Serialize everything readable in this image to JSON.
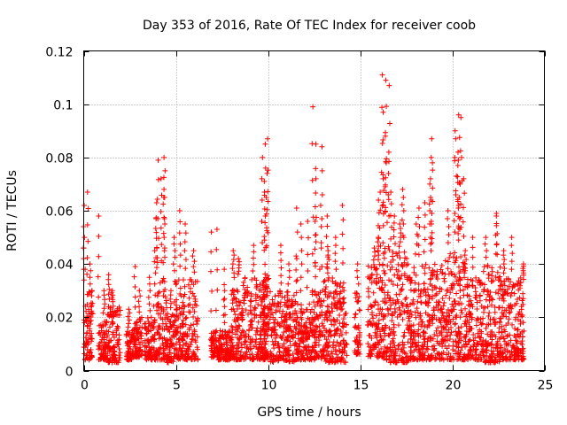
{
  "chart_data": {
    "type": "scatter",
    "title": "Day 353 of 2016, Rate Of TEC Index for receiver coob",
    "xlabel": "GPS time / hours",
    "ylabel": "ROTI / TECUs",
    "xlim": [
      0,
      25
    ],
    "ylim": [
      0,
      0.12
    ],
    "xticks": [
      0,
      5,
      10,
      15,
      20,
      25
    ],
    "xtick_labels": [
      "0",
      "5",
      "10",
      "15",
      "20",
      "25"
    ],
    "yticks": [
      0,
      0.02,
      0.04,
      0.06,
      0.08,
      0.1,
      0.12
    ],
    "ytick_labels": [
      "0",
      "0.02",
      "0.04",
      "0.06",
      "0.08",
      "0.1",
      "0.12"
    ],
    "grid": true,
    "marker": "+",
    "series": [
      {
        "name": "ROTI",
        "color": "#ff0000",
        "clusters": [
          {
            "x": [
              0.0,
              0.5
            ],
            "base": [
              0.004,
              0.03
            ],
            "peaks": [
              0.062,
              0.067,
              0.05,
              0.04
            ]
          },
          {
            "x": [
              0.8,
              1.3
            ],
            "base": [
              0.004,
              0.02
            ],
            "peaks": [
              0.058,
              0.03
            ]
          },
          {
            "x": [
              1.3,
              2.0
            ],
            "base": [
              0.003,
              0.025
            ],
            "peaks": [
              0.036,
              0.03
            ]
          },
          {
            "x": [
              2.3,
              2.6
            ],
            "base": [
              0.004,
              0.015
            ],
            "peaks": [
              0.023
            ]
          },
          {
            "x": [
              2.6,
              3.2
            ],
            "base": [
              0.005,
              0.02
            ],
            "peaks": [
              0.039,
              0.03
            ]
          },
          {
            "x": [
              3.3,
              3.9
            ],
            "base": [
              0.004,
              0.02
            ],
            "peaks": [
              0.045,
              0.035
            ]
          },
          {
            "x": [
              3.9,
              4.5
            ],
            "base": [
              0.004,
              0.035
            ],
            "peaks": [
              0.08,
              0.079,
              0.075,
              0.072,
              0.068,
              0.063,
              0.057
            ]
          },
          {
            "x": [
              4.5,
              4.9
            ],
            "base": [
              0.003,
              0.022
            ],
            "peaks": [
              0.03
            ]
          },
          {
            "x": [
              4.9,
              6.2
            ],
            "base": [
              0.004,
              0.035
            ],
            "peaks": [
              0.06,
              0.055,
              0.05,
              0.045
            ]
          },
          {
            "x": [
              6.9,
              7.3
            ],
            "base": [
              0.005,
              0.015
            ],
            "peaks": [
              0.053,
              0.052
            ]
          },
          {
            "x": [
              7.3,
              8.0
            ],
            "base": [
              0.004,
              0.015
            ],
            "peaks": [
              0.038,
              0.03
            ]
          },
          {
            "x": [
              8.0,
              10.0
            ],
            "base": [
              0.004,
              0.035
            ],
            "peaks": [
              0.047,
              0.045,
              0.042
            ]
          },
          {
            "x": [
              9.7,
              10.1
            ],
            "base": [
              0.004,
              0.04
            ],
            "peaks": [
              0.087,
              0.085,
              0.08,
              0.074,
              0.071,
              0.065
            ]
          },
          {
            "x": [
              10.1,
              11.5
            ],
            "base": [
              0.003,
              0.03
            ],
            "peaks": [
              0.047,
              0.04
            ]
          },
          {
            "x": [
              11.5,
              12.3
            ],
            "base": [
              0.004,
              0.025
            ],
            "peaks": [
              0.061,
              0.055,
              0.056,
              0.042
            ]
          },
          {
            "x": [
              12.3,
              13.0
            ],
            "base": [
              0.004,
              0.03
            ],
            "peaks": [
              0.099,
              0.085,
              0.084,
              0.072,
              0.062,
              0.056
            ]
          },
          {
            "x": [
              13.0,
              14.3
            ],
            "base": [
              0.003,
              0.035
            ],
            "peaks": [
              0.062,
              0.058,
              0.05,
              0.045
            ]
          },
          {
            "x": [
              14.7,
              15.0
            ],
            "base": [
              0.006,
              0.03
            ],
            "peaks": [
              0.04
            ]
          },
          {
            "x": [
              15.4,
              16.2
            ],
            "base": [
              0.005,
              0.04
            ],
            "peaks": [
              0.067,
              0.064,
              0.05,
              0.046
            ]
          },
          {
            "x": [
              16.2,
              16.6
            ],
            "base": [
              0.004,
              0.05
            ],
            "peaks": [
              0.111,
              0.109,
              0.107,
              0.097,
              0.088,
              0.082,
              0.078,
              0.072
            ]
          },
          {
            "x": [
              16.6,
              17.6
            ],
            "base": [
              0.003,
              0.045
            ],
            "peaks": [
              0.068,
              0.067,
              0.065,
              0.058,
              0.055
            ]
          },
          {
            "x": [
              17.6,
              18.4
            ],
            "base": [
              0.004,
              0.04
            ],
            "peaks": [
              0.061,
              0.055
            ]
          },
          {
            "x": [
              18.4,
              19.6
            ],
            "base": [
              0.004,
              0.04
            ],
            "peaks": [
              0.087,
              0.08,
              0.078,
              0.07,
              0.065,
              0.063
            ]
          },
          {
            "x": [
              19.6,
              20.7
            ],
            "base": [
              0.004,
              0.045
            ],
            "peaks": [
              0.096,
              0.095,
              0.09,
              0.087,
              0.082,
              0.08,
              0.077,
              0.072,
              0.065,
              0.06
            ]
          },
          {
            "x": [
              20.7,
              21.6
            ],
            "base": [
              0.004,
              0.035
            ],
            "peaks": [
              0.05,
              0.045
            ]
          },
          {
            "x": [
              21.6,
              22.6
            ],
            "base": [
              0.003,
              0.04
            ],
            "peaks": [
              0.059,
              0.058,
              0.05
            ]
          },
          {
            "x": [
              22.6,
              23.9
            ],
            "base": [
              0.004,
              0.035
            ],
            "peaks": [
              0.05,
              0.045,
              0.04
            ]
          }
        ]
      }
    ]
  }
}
